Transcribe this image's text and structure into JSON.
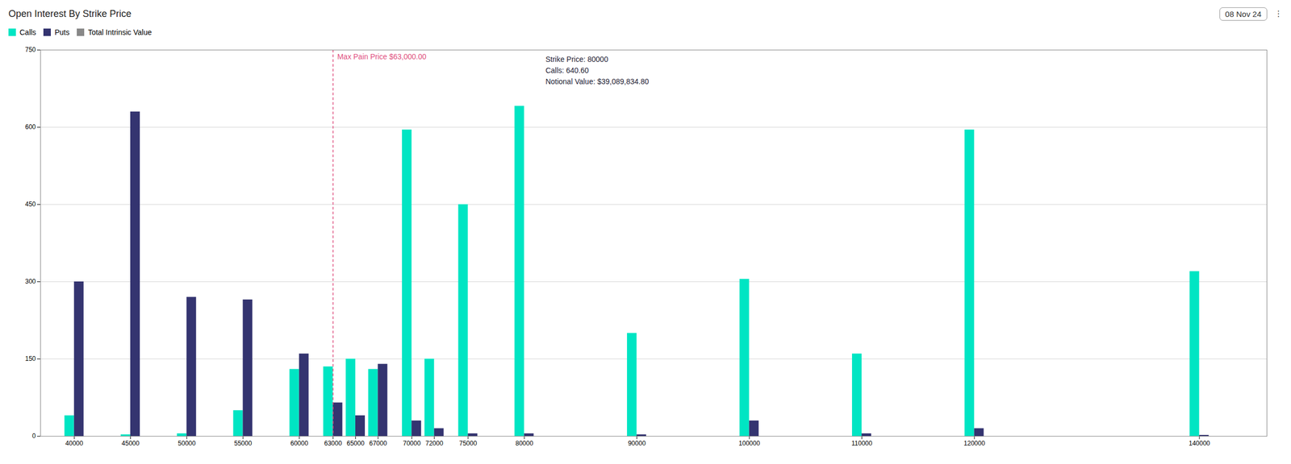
{
  "chart_data": {
    "type": "bar",
    "title": "Open Interest By Strike Price",
    "x": [
      40000,
      45000,
      50000,
      55000,
      60000,
      63000,
      65000,
      67000,
      70000,
      72000,
      75000,
      80000,
      90000,
      100000,
      110000,
      120000,
      140000
    ],
    "series": [
      {
        "name": "Calls",
        "color": "#00e5c3",
        "values": [
          40,
          3,
          5,
          50,
          130,
          135,
          150,
          130,
          595,
          150,
          450,
          641,
          200,
          305,
          160,
          595,
          320
        ]
      },
      {
        "name": "Puts",
        "color": "#343470",
        "values": [
          300,
          630,
          270,
          265,
          160,
          65,
          40,
          140,
          30,
          15,
          5,
          5,
          3,
          30,
          5,
          15,
          2
        ]
      },
      {
        "name": "Total Intrinsic Value",
        "type": "scatter",
        "marker": "square",
        "color": "#888888",
        "values": [
          null,
          null,
          null,
          null,
          null,
          null,
          null,
          null,
          null,
          null,
          null,
          null,
          null,
          null,
          null,
          null,
          null
        ]
      }
    ],
    "xlim": [
      37000,
      146000
    ],
    "xticks": [
      40000,
      45000,
      50000,
      55000,
      60000,
      63000,
      65000,
      67000,
      70000,
      72000,
      75000,
      80000,
      90000,
      100000,
      110000,
      120000,
      140000
    ],
    "ylim": [
      0,
      750
    ],
    "yticks": [
      0,
      150,
      300,
      450,
      600,
      750
    ],
    "grid": true,
    "legend": "upper left",
    "annotations": [
      {
        "type": "vline",
        "x": 63000,
        "text": "Max Pain Price $63,000.00",
        "color": "#e05080"
      },
      {
        "x": 80000,
        "text": "Strike Price: 80000\nCalls: 640.60\nNotional Value: $39,089,834.80",
        "color": "#1e2235"
      },
      {
        "text": "08 Nov 24"
      },
      {
        "text": "⋮"
      }
    ]
  }
}
